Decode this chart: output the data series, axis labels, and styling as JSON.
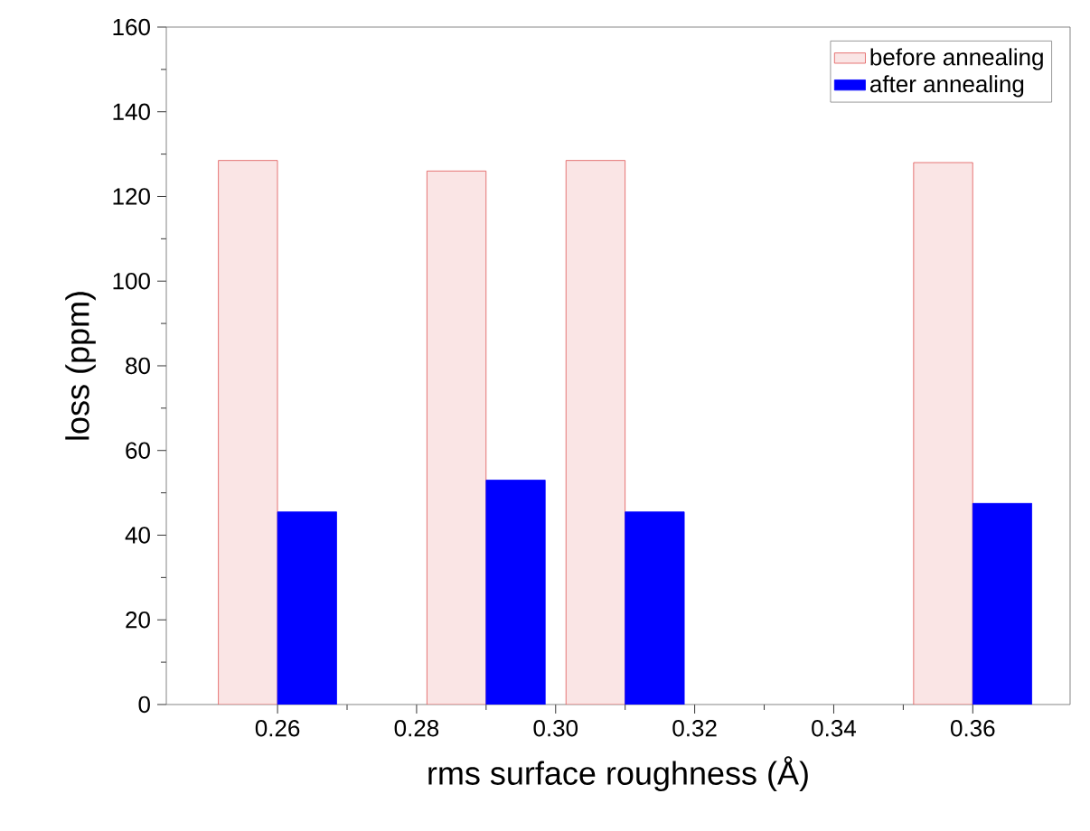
{
  "chart_data": {
    "type": "bar",
    "xlabel": "rms surface roughness (Å)",
    "ylabel": "loss (ppm)",
    "x": [
      0.26,
      0.29,
      0.31,
      0.36
    ],
    "series": [
      {
        "name": "before annealing",
        "color": "#e05555",
        "values": [
          128.5,
          126,
          128.5,
          128
        ]
      },
      {
        "name": "after annealing",
        "color": "#0000ff",
        "values": [
          45.5,
          53,
          45.5,
          47.5
        ]
      }
    ],
    "xlim": [
      0.244,
      0.374
    ],
    "xticks": [
      {
        "value": 0.26,
        "label": "0.26"
      },
      {
        "value": 0.28,
        "label": "0.28"
      },
      {
        "value": 0.3,
        "label": "0.30"
      },
      {
        "value": 0.32,
        "label": "0.32"
      },
      {
        "value": 0.34,
        "label": "0.34"
      },
      {
        "value": 0.36,
        "label": "0.36"
      }
    ],
    "ylim": [
      0,
      160
    ],
    "yticks": [
      0,
      20,
      40,
      60,
      80,
      100,
      120,
      140,
      160
    ],
    "legend": "top right"
  }
}
